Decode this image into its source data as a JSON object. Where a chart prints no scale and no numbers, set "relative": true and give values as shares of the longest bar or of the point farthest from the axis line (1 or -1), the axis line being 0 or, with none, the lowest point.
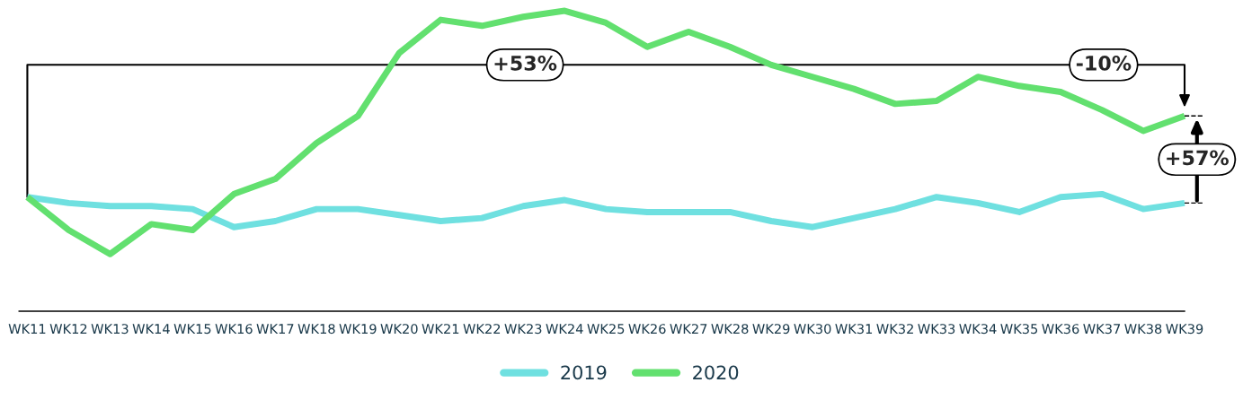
{
  "chart_data": {
    "type": "line",
    "relative": true,
    "categories": [
      "WK11",
      "WK12",
      "WK13",
      "WK14",
      "WK15",
      "WK16",
      "WK17",
      "WK18",
      "WK19",
      "WK20",
      "WK21",
      "WK22",
      "WK23",
      "WK24",
      "WK25",
      "WK26",
      "WK27",
      "WK28",
      "WK29",
      "WK30",
      "WK31",
      "WK32",
      "WK33",
      "WK34",
      "WK35",
      "WK36",
      "WK37",
      "WK38",
      "WK39"
    ],
    "series": [
      {
        "name": "2019",
        "color": "#6fe0e0",
        "values": [
          0.38,
          0.36,
          0.35,
          0.35,
          0.34,
          0.28,
          0.3,
          0.34,
          0.34,
          0.32,
          0.3,
          0.31,
          0.35,
          0.37,
          0.34,
          0.33,
          0.33,
          0.33,
          0.3,
          0.28,
          0.31,
          0.34,
          0.38,
          0.36,
          0.33,
          0.38,
          0.39,
          0.34,
          0.36
        ]
      },
      {
        "name": "2020",
        "color": "#62e06f",
        "values": [
          0.38,
          0.27,
          0.19,
          0.29,
          0.27,
          0.39,
          0.44,
          0.56,
          0.65,
          0.86,
          0.97,
          0.95,
          0.98,
          1.0,
          0.96,
          0.88,
          0.93,
          0.88,
          0.82,
          0.78,
          0.74,
          0.69,
          0.7,
          0.78,
          0.75,
          0.73,
          0.67,
          0.6,
          0.65
        ]
      }
    ],
    "annotations": [
      "+53%",
      "-10%",
      "+57%"
    ],
    "legend": "bottom",
    "grid": false,
    "marker": "none",
    "line_style": "solid"
  }
}
